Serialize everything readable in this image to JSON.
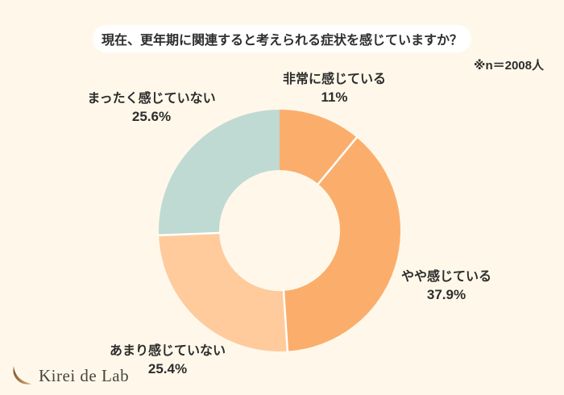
{
  "header": {
    "title": "現在、更年期に関連すると考えられる症状を感じていますか？",
    "note": "※n＝2008人"
  },
  "chart_data": {
    "type": "pie",
    "subtype": "donut",
    "title": "現在、更年期に関連すると考えられる症状を感じていますか？",
    "sample_size": 2008,
    "categories": [
      "非常に感じている",
      "やや感じている",
      "あまり感じていない",
      "まったく感じていない"
    ],
    "values": [
      11,
      37.9,
      25.4,
      25.6
    ],
    "value_labels": [
      "11%",
      "37.9%",
      "25.4%",
      "25.6%"
    ],
    "colors": [
      "#FBAE6C",
      "#FBAE6C",
      "#FFCB9D",
      "#BFDAD3"
    ],
    "start_angle_deg": 0,
    "direction": "clockwise",
    "inner_radius_ratio": 0.5,
    "divider_color": "#FFFFFF",
    "legend": "none"
  },
  "logo": {
    "text": "Kirei de Lab",
    "icon_color_dark": "#7E5128",
    "icon_color_light": "#CFA873"
  },
  "colors": {
    "background": "#FFF8EA",
    "title_box": "#FFFFFF",
    "text": "#2d2d2d"
  }
}
